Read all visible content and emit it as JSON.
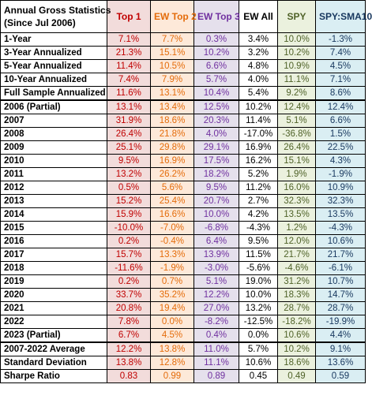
{
  "header": {
    "title_line1": "Annual Gross Statistics",
    "title_line2": "(Since Jul 2006)",
    "columns": [
      "Top 1",
      "EW Top 2",
      "EW Top 3",
      "EW All",
      "SPY",
      "SPY:SMA10"
    ]
  },
  "colors": {
    "top1": "#c00000",
    "ew_top2": "#e46c0a",
    "ew_top3": "#7030a0",
    "ew_all": "#000000",
    "spy": "#4f6228",
    "spy_sma10": "#17375e"
  },
  "rows": [
    {
      "label": "1-Year",
      "values": [
        "7.1%",
        "7.7%",
        "0.3%",
        "3.4%",
        "10.0%",
        "-1.3%"
      ]
    },
    {
      "label": "3-Year Annualized",
      "values": [
        "21.3%",
        "15.1%",
        "10.2%",
        "3.2%",
        "10.2%",
        "7.4%"
      ]
    },
    {
      "label": "5-Year Annualized",
      "values": [
        "11.4%",
        "10.5%",
        "6.6%",
        "4.8%",
        "10.9%",
        "4.5%"
      ]
    },
    {
      "label": "10-Year Annualized",
      "values": [
        "7.4%",
        "7.9%",
        "5.7%",
        "4.0%",
        "11.1%",
        "7.1%"
      ]
    },
    {
      "label": "Full Sample Annualized",
      "values": [
        "11.6%",
        "13.1%",
        "10.4%",
        "5.4%",
        "9.2%",
        "8.6%"
      ]
    },
    {
      "label": "2006 (Partial)",
      "values": [
        "13.1%",
        "13.4%",
        "12.5%",
        "10.2%",
        "12.4%",
        "12.4%"
      ]
    },
    {
      "label": "2007",
      "values": [
        "31.9%",
        "18.6%",
        "20.3%",
        "11.4%",
        "5.1%",
        "6.6%"
      ]
    },
    {
      "label": "2008",
      "values": [
        "26.4%",
        "21.8%",
        "4.0%",
        "-17.0%",
        "-36.8%",
        "1.5%"
      ]
    },
    {
      "label": "2009",
      "values": [
        "25.1%",
        "29.8%",
        "29.1%",
        "16.9%",
        "26.4%",
        "22.5%"
      ]
    },
    {
      "label": "2010",
      "values": [
        "9.5%",
        "16.9%",
        "17.5%",
        "16.2%",
        "15.1%",
        "4.3%"
      ]
    },
    {
      "label": "2011",
      "values": [
        "13.2%",
        "26.2%",
        "18.2%",
        "5.2%",
        "1.9%",
        "-1.9%"
      ]
    },
    {
      "label": "2012",
      "values": [
        "0.5%",
        "5.6%",
        "9.5%",
        "11.2%",
        "16.0%",
        "10.9%"
      ]
    },
    {
      "label": "2013",
      "values": [
        "15.2%",
        "25.4%",
        "20.7%",
        "2.7%",
        "32.3%",
        "32.3%"
      ]
    },
    {
      "label": "2014",
      "values": [
        "15.9%",
        "16.6%",
        "10.0%",
        "4.2%",
        "13.5%",
        "13.5%"
      ]
    },
    {
      "label": "2015",
      "values": [
        "-10.0%",
        "-7.0%",
        "-6.8%",
        "-4.3%",
        "1.2%",
        "-4.3%"
      ]
    },
    {
      "label": "2016",
      "values": [
        "0.2%",
        "-0.4%",
        "6.4%",
        "9.5%",
        "12.0%",
        "10.6%"
      ]
    },
    {
      "label": "2017",
      "values": [
        "15.7%",
        "13.3%",
        "13.9%",
        "11.5%",
        "21.7%",
        "21.7%"
      ]
    },
    {
      "label": "2018",
      "values": [
        "-11.6%",
        "-1.9%",
        "-3.0%",
        "-5.6%",
        "-4.6%",
        "-6.1%"
      ]
    },
    {
      "label": "2019",
      "values": [
        "0.2%",
        "0.7%",
        "5.1%",
        "19.0%",
        "31.2%",
        "10.7%"
      ]
    },
    {
      "label": "2020",
      "values": [
        "33.7%",
        "35.2%",
        "12.2%",
        "10.0%",
        "18.3%",
        "14.7%"
      ]
    },
    {
      "label": "2021",
      "values": [
        "20.8%",
        "19.4%",
        "27.0%",
        "13.2%",
        "28.7%",
        "28.7%"
      ]
    },
    {
      "label": "2022",
      "values": [
        "7.8%",
        "0.0%",
        "-8.2%",
        "-12.5%",
        "-18.2%",
        "-19.9%"
      ]
    },
    {
      "label": "2023 (Partial)",
      "values": [
        "6.7%",
        "4.5%",
        "0.4%",
        "0.0%",
        "10.6%",
        "4.4%"
      ]
    },
    {
      "label": "2007-2022 Average",
      "values": [
        "12.2%",
        "13.8%",
        "11.0%",
        "5.7%",
        "10.2%",
        "9.1%"
      ]
    },
    {
      "label": "Standard Deviation",
      "values": [
        "13.8%",
        "12.8%",
        "11.1%",
        "10.6%",
        "18.6%",
        "13.6%"
      ]
    },
    {
      "label": "Sharpe Ratio",
      "values": [
        "0.83",
        "0.99",
        "0.89",
        "0.45",
        "0.49",
        "0.59"
      ]
    }
  ]
}
